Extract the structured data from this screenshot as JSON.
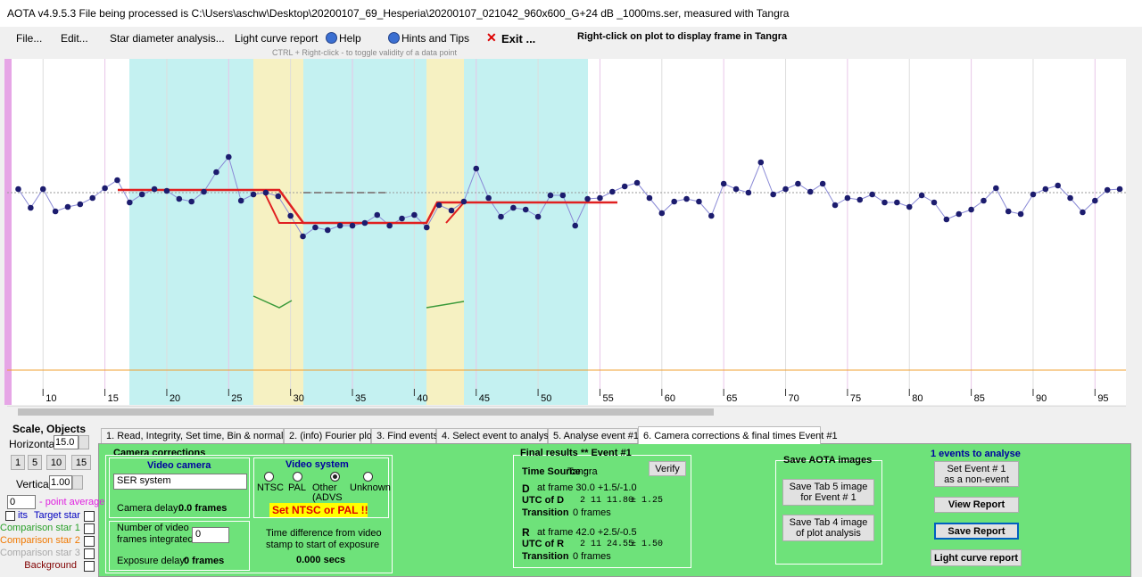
{
  "window_title": "AOTA v4.9.5.3    File being processed is C:\\Users\\aschw\\Desktop\\20200107_69_Hesperia\\20200107_021042_960x600_G+24 dB  _1000ms.ser, measured with Tangra",
  "menu": [
    "File...",
    "Edit...",
    "Star diameter analysis...",
    "Light curve report",
    "Help",
    "Hints and Tips",
    "Exit ..."
  ],
  "plot_hint": "Right-click on plot to display frame in Tangra",
  "toggle_hint": "CTRL + Right-click  -  to toggle validity of a data point",
  "chart_data": {
    "type": "line",
    "color": "#1c1c6e",
    "line_color": "#8a8ad6",
    "x": [
      8,
      9,
      10,
      11,
      12,
      13,
      14,
      15,
      16,
      17,
      18,
      19,
      20,
      21,
      22,
      23,
      24,
      25,
      26,
      27,
      28,
      29,
      30,
      31,
      32,
      33,
      34,
      35,
      36,
      37,
      38,
      39,
      40,
      41,
      42,
      43,
      44,
      45,
      46,
      47,
      48,
      49,
      50,
      51,
      52,
      53,
      54,
      55,
      56,
      57,
      58,
      59,
      60,
      61,
      62,
      63,
      64,
      65,
      66,
      67,
      68,
      69,
      70,
      71,
      72,
      73,
      74,
      75,
      76,
      77,
      78,
      79,
      80,
      81,
      82,
      83,
      84,
      85,
      86,
      87,
      88,
      89,
      90,
      91,
      92,
      93,
      94,
      95,
      96,
      97
    ],
    "values": [
      238,
      217,
      238,
      213,
      218,
      221,
      228,
      239,
      248,
      223,
      232,
      238,
      236,
      227,
      224,
      235,
      257,
      274,
      225,
      232,
      234,
      230,
      208,
      185,
      195,
      192,
      197,
      197,
      200,
      209,
      197,
      205,
      209,
      195,
      220,
      214,
      224,
      261,
      228,
      207,
      217,
      215,
      207,
      231,
      231,
      197,
      227,
      228,
      235,
      241,
      245,
      228,
      211,
      224,
      227,
      224,
      208,
      244,
      238,
      234,
      268,
      232,
      238,
      244,
      235,
      244,
      220,
      228,
      226,
      232,
      223,
      223,
      218,
      231,
      223,
      204,
      210,
      215,
      225,
      239,
      213,
      210,
      232,
      238,
      242,
      228,
      212,
      225,
      237,
      238
    ],
    "xlim": [
      7.1,
      97.5
    ],
    "ylim": [
      0,
      382
    ],
    "xticks": [
      10,
      15,
      20,
      25,
      30,
      35,
      40,
      45,
      50,
      55,
      60,
      65,
      70,
      75,
      80,
      85,
      90,
      95
    ],
    "grid": true
  },
  "left_panel": {
    "heading": "Scale,  Objects",
    "horizontal_label": "Horizontal",
    "horizontal_value": "15.0",
    "scale_buttons": [
      "1",
      "5",
      "10",
      "15"
    ],
    "vertical_label": "Vertical",
    "vertical_value": "1.00",
    "point_average_value": "0",
    "point_average_label": "- point average",
    "plots_label": "its",
    "objects": [
      "Target star",
      "Comparison star 1",
      "Comparison star 2",
      "Comparison star 3",
      "Background"
    ]
  },
  "tabs": [
    "1. Read, Integrity, Set time, Bin & normalise",
    "2. (info)  Fourier plot",
    "3. Find events",
    "4. Select event to analyse",
    "5. Analyse event #1",
    "6. Camera corrections & final times Event #1"
  ],
  "camera": {
    "heading": "Camera corrections",
    "video_camera": "Video camera",
    "camera_type": "SER system",
    "camera_delay_label": "Camera delay:",
    "camera_delay": "0.0 frames",
    "frames_line1": "Number of video",
    "frames_line2": "frames integrated",
    "frames_value": "0",
    "exposure_delay_label": "Exposure delay:",
    "exposure_delay": "0 frames",
    "video_system": "Video system",
    "options": [
      "NTSC",
      "PAL",
      "Other",
      "(ADVS",
      "Unknown"
    ],
    "warning": "Set NTSC or PAL !!",
    "time_diff_line1": "Time difference from video",
    "time_diff_line2": "stamp to start of exposure",
    "time_diff": "0.000 secs"
  },
  "results": {
    "heading": "Final results  **  Event #1",
    "time_source_label": "Time Source :",
    "time_source": "Tangra",
    "verify": "Verify",
    "d_label": "D",
    "d_frame": "at frame 30.0  +1.5/-1.0",
    "utc_d_label": "UTC of D",
    "utc_d": "2 11 11.80",
    "utc_d_err": "± 1.25",
    "d_transition_label": "Transition",
    "d_transition": "0 frames",
    "r_label": "R",
    "r_frame": "at frame 42.0  +2.5/-0.5",
    "utc_r_label": "UTC of R",
    "utc_r": "2 11 24.55",
    "utc_r_err": "± 1.50",
    "r_transition_label": "Transition",
    "r_transition": "0 frames"
  },
  "images": {
    "heading": "Save AOTA images",
    "tab5_line1": "Save Tab 5 image",
    "tab5_line2": "for Event # 1",
    "tab4_line1": "Save Tab 4 image",
    "tab4_line2": "of plot analysis"
  },
  "events": {
    "heading": "1  events to analyse",
    "non_event_line1": "Set Event # 1",
    "non_event_line2": "as a non-event",
    "view_report": "View Report",
    "save_report": "Save Report",
    "light_curve_report": "Light curve report"
  }
}
